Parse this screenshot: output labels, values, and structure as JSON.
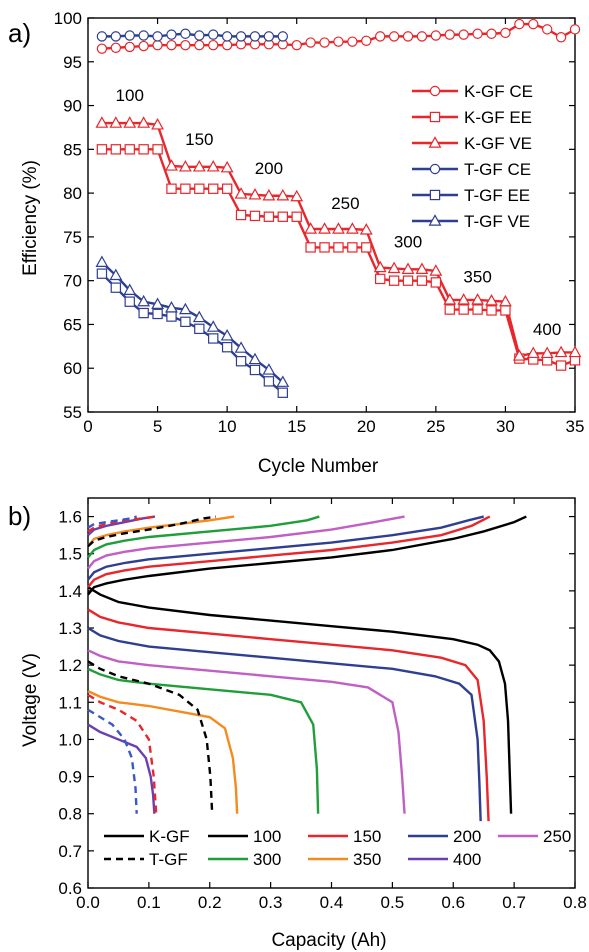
{
  "colors": {
    "red": "#e8262b",
    "blue": "#2e3f92",
    "black": "#000000",
    "purple": "#c060c4",
    "green": "#1f9e3a",
    "orange": "#f58a1f",
    "violet": "#6a3fb2",
    "red_dashed": "#e8262b",
    "blue_dashed": "#3b58c8"
  },
  "chart_data": [
    {
      "panel": "a)",
      "type": "line",
      "xlabel": "Cycle Number",
      "ylabel": "Efficiency (%)",
      "xlim": [
        0,
        35
      ],
      "ylim": [
        55,
        100
      ],
      "xticks": [
        0,
        5,
        10,
        15,
        20,
        25,
        30,
        35
      ],
      "yticks": [
        55,
        60,
        65,
        70,
        75,
        80,
        85,
        90,
        95,
        100
      ],
      "legend_position": "right",
      "rate_annotations": [
        {
          "text": "100",
          "x": 3,
          "y": 90.5
        },
        {
          "text": "150",
          "x": 8,
          "y": 85.5
        },
        {
          "text": "200",
          "x": 13,
          "y": 82.2
        },
        {
          "text": "250",
          "x": 18.5,
          "y": 78.2
        },
        {
          "text": "300",
          "x": 23,
          "y": 73.8
        },
        {
          "text": "350",
          "x": 28,
          "y": 69.8
        },
        {
          "text": "400",
          "x": 33,
          "y": 63.8
        }
      ],
      "series": [
        {
          "name": "K-GF CE",
          "color": "#e8262b",
          "marker": "circle",
          "x": [
            1,
            2,
            3,
            4,
            5,
            6,
            7,
            8,
            9,
            10,
            11,
            12,
            13,
            14,
            15,
            16,
            17,
            18,
            19,
            20,
            21,
            22,
            23,
            24,
            25,
            26,
            27,
            28,
            29,
            30,
            31,
            32,
            33,
            34,
            35
          ],
          "y": [
            96.5,
            96.6,
            96.7,
            96.8,
            96.9,
            96.9,
            96.9,
            96.9,
            96.9,
            96.9,
            97.0,
            97.0,
            97.0,
            97.0,
            96.9,
            97.2,
            97.2,
            97.3,
            97.3,
            97.4,
            97.9,
            97.9,
            97.9,
            97.9,
            98.0,
            98.1,
            98.1,
            98.2,
            98.2,
            98.3,
            99.3,
            99.3,
            98.7,
            97.8,
            98.7
          ]
        },
        {
          "name": "K-GF EE",
          "color": "#e8262b",
          "marker": "square",
          "x": [
            1,
            2,
            3,
            4,
            5,
            6,
            7,
            8,
            9,
            10,
            11,
            12,
            13,
            14,
            15,
            16,
            17,
            18,
            19,
            20,
            21,
            22,
            23,
            24,
            25,
            26,
            27,
            28,
            29,
            30,
            31,
            32,
            33,
            34,
            35
          ],
          "y": [
            85.0,
            85.0,
            85.0,
            85.0,
            85.0,
            80.5,
            80.5,
            80.5,
            80.5,
            80.5,
            77.5,
            77.4,
            77.3,
            77.3,
            77.3,
            73.8,
            73.8,
            73.8,
            73.8,
            73.8,
            70.2,
            70.0,
            70.0,
            70.0,
            69.8,
            66.7,
            66.7,
            66.7,
            66.6,
            66.6,
            61.1,
            61.0,
            60.9,
            60.3,
            60.9
          ]
        },
        {
          "name": "K-GF VE",
          "color": "#e8262b",
          "marker": "triangle",
          "x": [
            1,
            2,
            3,
            4,
            5,
            6,
            7,
            8,
            9,
            10,
            11,
            12,
            13,
            14,
            15,
            16,
            17,
            18,
            19,
            20,
            21,
            22,
            23,
            24,
            25,
            26,
            27,
            28,
            29,
            30,
            31,
            32,
            33,
            34,
            35
          ],
          "y": [
            88.0,
            88.0,
            88.0,
            88.0,
            87.8,
            83.1,
            83.0,
            83.0,
            83.0,
            82.9,
            79.9,
            79.8,
            79.7,
            79.7,
            79.6,
            75.9,
            75.9,
            75.9,
            75.9,
            75.8,
            71.5,
            71.4,
            71.3,
            71.3,
            71.1,
            67.8,
            67.8,
            67.8,
            67.7,
            67.6,
            61.4,
            61.7,
            61.7,
            61.8,
            61.8
          ]
        },
        {
          "name": "T-GF CE",
          "color": "#2e3f92",
          "marker": "circle",
          "x": [
            1,
            2,
            3,
            4,
            5,
            6,
            7,
            8,
            9,
            10,
            11,
            12,
            13,
            14
          ],
          "y": [
            97.9,
            97.9,
            98.0,
            98.0,
            97.9,
            98.1,
            98.2,
            98.0,
            98.1,
            97.9,
            97.9,
            97.9,
            97.9,
            97.9
          ]
        },
        {
          "name": "T-GF EE",
          "color": "#2e3f92",
          "marker": "square",
          "x": [
            1,
            2,
            3,
            4,
            5,
            6,
            7,
            8,
            9,
            10,
            11,
            12,
            13,
            14
          ],
          "y": [
            70.8,
            69.2,
            67.6,
            66.3,
            66.2,
            65.9,
            65.3,
            64.5,
            63.4,
            62.4,
            60.8,
            59.8,
            58.5,
            57.2
          ]
        },
        {
          "name": "T-GF VE",
          "color": "#2e3f92",
          "marker": "triangle",
          "x": [
            1,
            2,
            3,
            4,
            5,
            6,
            7,
            8,
            9,
            10,
            11,
            12,
            13,
            14
          ],
          "y": [
            72.1,
            70.6,
            68.9,
            67.6,
            67.3,
            66.9,
            66.7,
            65.8,
            64.7,
            63.7,
            62.3,
            61.0,
            59.8,
            58.4
          ]
        }
      ]
    },
    {
      "panel": "b)",
      "type": "line",
      "xlabel": "Capacity (Ah)",
      "ylabel": "Voltage (V)",
      "xlim": [
        0,
        0.8
      ],
      "ylim": [
        0.6,
        1.65
      ],
      "xticks": [
        0.0,
        0.1,
        0.2,
        0.3,
        0.4,
        0.5,
        0.6,
        0.7,
        0.8
      ],
      "yticks": [
        0.6,
        0.7,
        0.8,
        0.9,
        1.0,
        1.1,
        1.2,
        1.3,
        1.4,
        1.5,
        1.6
      ],
      "legend_position": "bottom",
      "legend": [
        {
          "label": "K-GF",
          "color": "#000000",
          "style": "solid"
        },
        {
          "label": "100",
          "color": "#000000",
          "style": "solid"
        },
        {
          "label": "150",
          "color": "#e8262b",
          "style": "solid"
        },
        {
          "label": "200",
          "color": "#2e3f92",
          "style": "solid"
        },
        {
          "label": "250",
          "color": "#c060c4",
          "style": "solid"
        },
        {
          "label": "T-GF",
          "color": "#000000",
          "style": "dashed"
        },
        {
          "label": "300",
          "color": "#1f9e3a",
          "style": "solid"
        },
        {
          "label": "350",
          "color": "#f58a1f",
          "style": "solid"
        },
        {
          "label": "400",
          "color": "#6a3fb2",
          "style": "solid"
        }
      ],
      "series": [
        {
          "sample": "K-GF",
          "rate": "100",
          "color": "#000000",
          "style": "solid",
          "charge_x": [
            0,
            0.01,
            0.03,
            0.06,
            0.1,
            0.2,
            0.3,
            0.4,
            0.5,
            0.6,
            0.65,
            0.7,
            0.72
          ],
          "charge_y": [
            1.39,
            1.41,
            1.42,
            1.43,
            1.44,
            1.46,
            1.475,
            1.49,
            1.51,
            1.54,
            1.56,
            1.585,
            1.6
          ],
          "discharge_x": [
            0,
            0.02,
            0.05,
            0.1,
            0.2,
            0.3,
            0.4,
            0.5,
            0.6,
            0.64,
            0.66,
            0.675,
            0.685,
            0.69,
            0.693,
            0.695
          ],
          "discharge_y": [
            1.41,
            1.39,
            1.37,
            1.355,
            1.335,
            1.32,
            1.305,
            1.29,
            1.27,
            1.255,
            1.24,
            1.21,
            1.15,
            1.05,
            0.9,
            0.8
          ]
        },
        {
          "sample": "K-GF",
          "rate": "150",
          "color": "#e8262b",
          "style": "solid",
          "charge_x": [
            0,
            0.01,
            0.03,
            0.06,
            0.1,
            0.2,
            0.3,
            0.4,
            0.5,
            0.58,
            0.63,
            0.66
          ],
          "charge_y": [
            1.41,
            1.43,
            1.445,
            1.455,
            1.465,
            1.48,
            1.495,
            1.51,
            1.53,
            1.55,
            1.575,
            1.6
          ],
          "discharge_x": [
            0,
            0.02,
            0.05,
            0.1,
            0.2,
            0.3,
            0.4,
            0.5,
            0.58,
            0.62,
            0.64,
            0.65,
            0.655,
            0.658
          ],
          "discharge_y": [
            1.35,
            1.33,
            1.315,
            1.3,
            1.285,
            1.27,
            1.255,
            1.24,
            1.22,
            1.2,
            1.16,
            1.05,
            0.9,
            0.78
          ]
        },
        {
          "sample": "K-GF",
          "rate": "200",
          "color": "#2e3f92",
          "style": "solid",
          "charge_x": [
            0,
            0.01,
            0.03,
            0.06,
            0.1,
            0.2,
            0.3,
            0.4,
            0.5,
            0.58,
            0.625,
            0.65
          ],
          "charge_y": [
            1.43,
            1.45,
            1.465,
            1.475,
            1.485,
            1.5,
            1.515,
            1.53,
            1.55,
            1.57,
            1.59,
            1.6
          ],
          "discharge_x": [
            0,
            0.02,
            0.05,
            0.1,
            0.2,
            0.3,
            0.4,
            0.5,
            0.57,
            0.61,
            0.63,
            0.64,
            0.643,
            0.645
          ],
          "discharge_y": [
            1.3,
            1.28,
            1.265,
            1.25,
            1.235,
            1.22,
            1.205,
            1.19,
            1.17,
            1.15,
            1.12,
            1.0,
            0.88,
            0.78
          ]
        },
        {
          "sample": "K-GF",
          "rate": "250",
          "color": "#c060c4",
          "style": "solid",
          "charge_x": [
            0,
            0.01,
            0.03,
            0.06,
            0.1,
            0.2,
            0.3,
            0.4,
            0.47,
            0.52
          ],
          "charge_y": [
            1.46,
            1.48,
            1.495,
            1.505,
            1.515,
            1.53,
            1.545,
            1.565,
            1.585,
            1.6
          ],
          "discharge_x": [
            0,
            0.02,
            0.05,
            0.1,
            0.2,
            0.3,
            0.4,
            0.46,
            0.5,
            0.51,
            0.516,
            0.52
          ],
          "discharge_y": [
            1.24,
            1.225,
            1.21,
            1.2,
            1.185,
            1.17,
            1.155,
            1.14,
            1.1,
            1.02,
            0.9,
            0.8
          ]
        },
        {
          "sample": "K-GF",
          "rate": "300",
          "color": "#1f9e3a",
          "style": "solid",
          "charge_x": [
            0,
            0.01,
            0.03,
            0.06,
            0.1,
            0.2,
            0.3,
            0.36,
            0.38
          ],
          "charge_y": [
            1.49,
            1.51,
            1.525,
            1.535,
            1.545,
            1.56,
            1.575,
            1.59,
            1.6
          ],
          "discharge_x": [
            0,
            0.02,
            0.05,
            0.1,
            0.2,
            0.3,
            0.35,
            0.37,
            0.376,
            0.378
          ],
          "discharge_y": [
            1.19,
            1.175,
            1.16,
            1.15,
            1.135,
            1.12,
            1.1,
            1.04,
            0.92,
            0.8
          ]
        },
        {
          "sample": "K-GF",
          "rate": "350",
          "color": "#f58a1f",
          "style": "solid",
          "charge_x": [
            0,
            0.01,
            0.03,
            0.06,
            0.1,
            0.15,
            0.2,
            0.24
          ],
          "charge_y": [
            1.52,
            1.54,
            1.55,
            1.56,
            1.57,
            1.58,
            1.59,
            1.6
          ],
          "discharge_x": [
            0,
            0.02,
            0.05,
            0.1,
            0.15,
            0.2,
            0.225,
            0.238,
            0.243,
            0.245
          ],
          "discharge_y": [
            1.13,
            1.115,
            1.1,
            1.09,
            1.075,
            1.06,
            1.03,
            0.95,
            0.87,
            0.8
          ]
        },
        {
          "sample": "K-GF",
          "rate": "400",
          "color": "#6a3fb2",
          "style": "solid",
          "charge_x": [
            0,
            0.01,
            0.03,
            0.06,
            0.09,
            0.11
          ],
          "charge_y": [
            1.55,
            1.565,
            1.575,
            1.585,
            1.595,
            1.6
          ],
          "discharge_x": [
            0,
            0.02,
            0.05,
            0.08,
            0.095,
            0.103,
            0.107,
            0.109
          ],
          "discharge_y": [
            1.04,
            1.02,
            1.0,
            0.98,
            0.95,
            0.9,
            0.85,
            0.8
          ]
        },
        {
          "sample": "T-GF",
          "rate": "100",
          "color": "#000000",
          "style": "dashed",
          "charge_x": [
            0,
            0.01,
            0.03,
            0.06,
            0.1,
            0.15,
            0.19,
            0.21
          ],
          "charge_y": [
            1.52,
            1.535,
            1.545,
            1.555,
            1.565,
            1.58,
            1.595,
            1.6
          ],
          "discharge_x": [
            0,
            0.02,
            0.05,
            0.1,
            0.15,
            0.18,
            0.195,
            0.201,
            0.204
          ],
          "discharge_y": [
            1.21,
            1.19,
            1.17,
            1.15,
            1.12,
            1.08,
            1.0,
            0.9,
            0.8
          ]
        },
        {
          "sample": "T-GF",
          "rate": "150",
          "color": "#e8262b",
          "style": "dashed",
          "charge_x": [
            0,
            0.01,
            0.03,
            0.06,
            0.09,
            0.11
          ],
          "charge_y": [
            1.56,
            1.57,
            1.58,
            1.59,
            1.595,
            1.6
          ],
          "discharge_x": [
            0,
            0.02,
            0.05,
            0.08,
            0.1,
            0.108,
            0.112
          ],
          "discharge_y": [
            1.12,
            1.1,
            1.08,
            1.05,
            1.0,
            0.9,
            0.8
          ]
        },
        {
          "sample": "T-GF",
          "rate": "200",
          "color": "#3b58c8",
          "style": "dashed",
          "charge_x": [
            0,
            0.01,
            0.03,
            0.05,
            0.07,
            0.08
          ],
          "charge_y": [
            1.57,
            1.58,
            1.585,
            1.59,
            1.595,
            1.6
          ],
          "discharge_x": [
            0,
            0.02,
            0.04,
            0.06,
            0.072,
            0.078,
            0.08
          ],
          "discharge_y": [
            1.08,
            1.06,
            1.04,
            1.0,
            0.95,
            0.87,
            0.8
          ]
        }
      ]
    }
  ]
}
